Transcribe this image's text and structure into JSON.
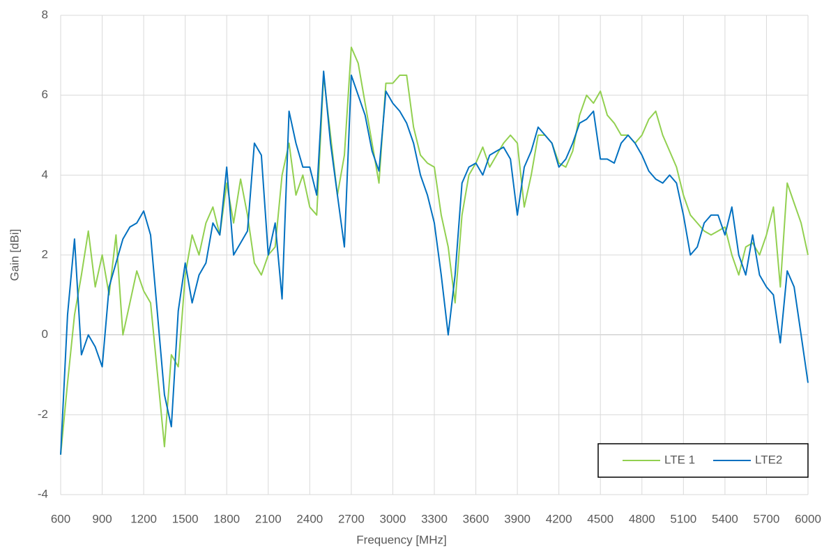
{
  "chart_data": {
    "type": "line",
    "x_label": "Frequency [MHz]",
    "y_label": "Gain [dBi]",
    "x": [
      600,
      650,
      700,
      750,
      800,
      850,
      900,
      950,
      1000,
      1050,
      1100,
      1150,
      1200,
      1250,
      1300,
      1350,
      1400,
      1450,
      1500,
      1550,
      1600,
      1650,
      1700,
      1750,
      1800,
      1850,
      1900,
      1950,
      2000,
      2050,
      2100,
      2150,
      2200,
      2250,
      2300,
      2350,
      2400,
      2450,
      2500,
      2550,
      2600,
      2650,
      2700,
      2750,
      2800,
      2850,
      2900,
      2950,
      3000,
      3050,
      3100,
      3150,
      3200,
      3250,
      3300,
      3350,
      3400,
      3450,
      3500,
      3550,
      3600,
      3650,
      3700,
      3750,
      3800,
      3850,
      3900,
      3950,
      4000,
      4050,
      4100,
      4150,
      4200,
      4250,
      4300,
      4350,
      4400,
      4450,
      4500,
      4550,
      4600,
      4650,
      4700,
      4750,
      4800,
      4850,
      4900,
      4950,
      5000,
      5050,
      5100,
      5150,
      5200,
      5250,
      5300,
      5350,
      5400,
      5450,
      5500,
      5550,
      5600,
      5650,
      5700,
      5750,
      5800,
      5850,
      5900,
      5950,
      6000
    ],
    "series": [
      {
        "name": "LTE 1",
        "color": "#92d050",
        "values": [
          -3,
          -1.2,
          0.5,
          1.5,
          2.6,
          1.2,
          2.0,
          1.0,
          2.5,
          0.0,
          0.8,
          1.6,
          1.1,
          0.8,
          -1.0,
          -2.8,
          -0.5,
          -0.8,
          1.5,
          2.5,
          2.0,
          2.8,
          3.2,
          2.5,
          3.8,
          2.8,
          3.9,
          3.0,
          1.8,
          1.5,
          2.0,
          2.2,
          4.0,
          4.8,
          3.5,
          4.0,
          3.2,
          3.0,
          6.5,
          5.0,
          3.5,
          4.5,
          7.2,
          6.8,
          5.8,
          4.8,
          3.8,
          6.3,
          6.3,
          6.5,
          6.5,
          5.2,
          4.5,
          4.3,
          4.2,
          3.0,
          2.2,
          0.8,
          3.0,
          4.0,
          4.3,
          4.7,
          4.2,
          4.5,
          4.8,
          5.0,
          4.8,
          3.2,
          4.0,
          5.0,
          5.0,
          4.8,
          4.3,
          4.2,
          4.6,
          5.5,
          6.0,
          5.8,
          6.1,
          5.5,
          5.3,
          5.0,
          5.0,
          4.8,
          5.0,
          5.4,
          5.6,
          5.0,
          4.6,
          4.2,
          3.5,
          3.0,
          2.8,
          2.6,
          2.5,
          2.6,
          2.7,
          2.0,
          1.5,
          2.2,
          2.3,
          2.0,
          2.5,
          3.2,
          1.2,
          3.8,
          3.3,
          2.8,
          2.0
        ]
      },
      {
        "name": "LTE2",
        "color": "#0070c0",
        "values": [
          -3.0,
          0.5,
          2.4,
          -0.5,
          0.0,
          -0.3,
          -0.8,
          1.2,
          1.8,
          2.4,
          2.7,
          2.8,
          3.1,
          2.5,
          0.5,
          -1.5,
          -2.3,
          0.6,
          1.8,
          0.8,
          1.5,
          1.8,
          2.8,
          2.5,
          4.2,
          2.0,
          2.3,
          2.6,
          4.8,
          4.5,
          2.0,
          2.8,
          0.9,
          5.6,
          4.8,
          4.2,
          4.2,
          3.5,
          6.6,
          4.8,
          3.5,
          2.2,
          6.5,
          6.0,
          5.5,
          4.6,
          4.1,
          6.1,
          5.8,
          5.6,
          5.3,
          4.8,
          4.0,
          3.5,
          2.8,
          1.5,
          0.0,
          1.5,
          3.8,
          4.2,
          4.3,
          4.0,
          4.5,
          4.6,
          4.7,
          4.4,
          3.0,
          4.2,
          4.6,
          5.2,
          5.0,
          4.8,
          4.2,
          4.4,
          4.8,
          5.3,
          5.4,
          5.6,
          4.4,
          4.4,
          4.3,
          4.8,
          5.0,
          4.8,
          4.5,
          4.1,
          3.9,
          3.8,
          4.0,
          3.8,
          3.0,
          2.0,
          2.2,
          2.8,
          3.0,
          3.0,
          2.5,
          3.2,
          2.0,
          1.5,
          2.5,
          1.5,
          1.2,
          1.0,
          -0.2,
          1.6,
          1.2,
          0.0,
          -1.2
        ]
      }
    ],
    "xlim": [
      600,
      6000
    ],
    "xticks": [
      600,
      900,
      1200,
      1500,
      1800,
      2100,
      2400,
      2700,
      3000,
      3300,
      3600,
      3900,
      4200,
      4500,
      4800,
      5100,
      5400,
      5700,
      6000
    ],
    "ylim": [
      -4,
      8
    ],
    "yticks": [
      -4,
      -2,
      0,
      2,
      4,
      6,
      8
    ],
    "grid": true,
    "legend": "lower right"
  }
}
